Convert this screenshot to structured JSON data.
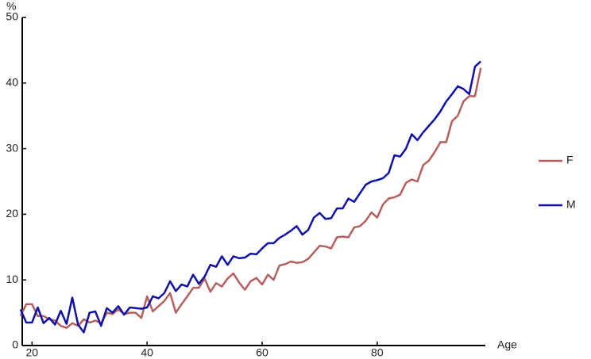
{
  "chart_data": {
    "type": "line",
    "xlabel": "Age",
    "ylabel": "%",
    "x": [
      18,
      19,
      20,
      21,
      22,
      23,
      24,
      25,
      26,
      27,
      28,
      29,
      30,
      31,
      32,
      33,
      34,
      35,
      36,
      37,
      38,
      39,
      40,
      41,
      42,
      43,
      44,
      45,
      46,
      47,
      48,
      49,
      50,
      51,
      52,
      53,
      54,
      55,
      56,
      57,
      58,
      59,
      60,
      61,
      62,
      63,
      64,
      65,
      66,
      67,
      68,
      69,
      70,
      71,
      72,
      73,
      74,
      75,
      76,
      77,
      78,
      79,
      80,
      81,
      82,
      83,
      84,
      85,
      86,
      87,
      88,
      89,
      90,
      91,
      92,
      93,
      94,
      95,
      96,
      97,
      98
    ],
    "series": [
      {
        "name": "F",
        "color": "#b5605e",
        "values": [
          4.5,
          6.3,
          6.3,
          4.5,
          4.5,
          4,
          3.8,
          3,
          2.7,
          3.4,
          3,
          4,
          3.5,
          3.8,
          3.4,
          5,
          4.8,
          5.5,
          4.8,
          5,
          5,
          4.2,
          7.5,
          5.2,
          6,
          6.8,
          8,
          5,
          6.3,
          7.5,
          8.8,
          8.8,
          10.2,
          8.2,
          9.5,
          9,
          10.2,
          11,
          9.6,
          8.5,
          9.8,
          10.3,
          9.3,
          10.8,
          10,
          12.2,
          12.4,
          12.8,
          12.6,
          12.7,
          13.2,
          14.2,
          15.2,
          15.1,
          14.8,
          16.5,
          16.6,
          16.5,
          18,
          18.2,
          19,
          20.3,
          19.5,
          21.5,
          22.4,
          22.6,
          23,
          24.8,
          25.3,
          25,
          27.5,
          28.2,
          29.5,
          31,
          31,
          34.2,
          35,
          37.2,
          38,
          38,
          42.3
        ]
      },
      {
        "name": "M",
        "color": "#1010a8",
        "values": [
          5.5,
          3.5,
          3.5,
          5.8,
          3.4,
          4.2,
          3.2,
          5.3,
          3.3,
          7.3,
          3.2,
          2,
          5,
          5.2,
          3,
          5.7,
          5,
          6,
          4.7,
          5.8,
          5.7,
          5.6,
          5.8,
          7.5,
          7.2,
          8,
          9.8,
          8.3,
          9.3,
          9,
          10.8,
          9.4,
          10.5,
          12.3,
          12,
          13.6,
          12.3,
          13.6,
          13.3,
          13.4,
          14,
          13.9,
          14.8,
          15.6,
          15.6,
          16.4,
          16.9,
          17.5,
          18.2,
          16.9,
          17.6,
          19.5,
          20.2,
          19.3,
          19.4,
          20.9,
          20.9,
          22.4,
          21.9,
          23.2,
          24.5,
          25,
          25.2,
          25.5,
          26.3,
          29,
          28.8,
          30,
          32.2,
          31.3,
          32.5,
          33.5,
          34.5,
          35.7,
          37.2,
          38.3,
          39.5,
          39.1,
          38.3,
          42.5,
          43.3
        ]
      }
    ],
    "xlim": [
      18.3,
      98.8
    ],
    "ylim": [
      0,
      50
    ],
    "xticks": [
      20,
      40,
      60,
      80
    ],
    "yticks": [
      0,
      10,
      20,
      30,
      40,
      50
    ],
    "grid": false,
    "legend": "right"
  }
}
